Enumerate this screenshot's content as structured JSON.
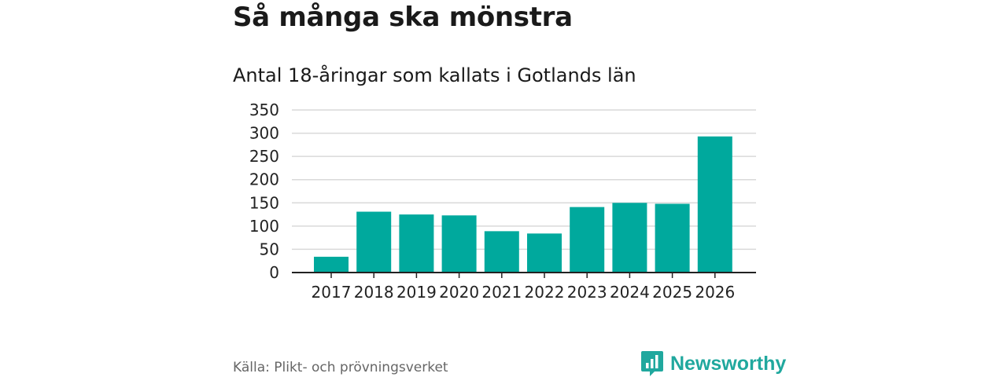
{
  "header": {
    "title": "Så många ska mönstra",
    "subtitle": "Antal 18-åringar som kallats i Gotlands län"
  },
  "footer": {
    "source": "Källa: Plikt- och prövningsverket",
    "brand": "Newsworthy"
  },
  "colors": {
    "bar": "#00a99d",
    "grid": "#d9d9d9",
    "axis": "#222222",
    "brand": "#20a89e"
  },
  "chart_data": {
    "type": "bar",
    "title": "Så många ska mönstra",
    "subtitle": "Antal 18-åringar som kallats i Gotlands län",
    "categories": [
      "2017",
      "2018",
      "2019",
      "2020",
      "2021",
      "2022",
      "2023",
      "2024",
      "2025",
      "2026"
    ],
    "values": [
      34,
      131,
      125,
      123,
      89,
      84,
      141,
      150,
      148,
      293
    ],
    "xlabel": "",
    "ylabel": "",
    "ylim": [
      0,
      350
    ],
    "yticks": [
      0,
      50,
      100,
      150,
      200,
      250,
      300,
      350
    ],
    "grid": true,
    "legend": "none"
  }
}
